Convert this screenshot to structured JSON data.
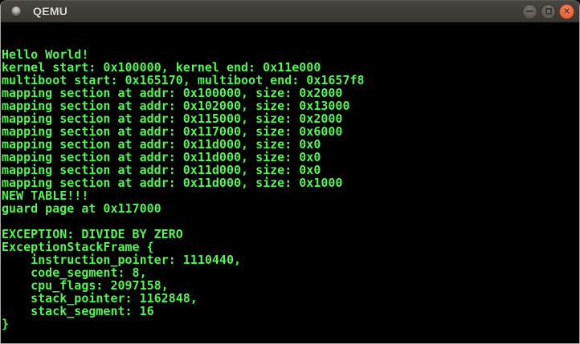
{
  "window": {
    "title": "QEMU",
    "icons": {
      "window_icon": "qemu-circle",
      "minimize": "minus",
      "maximize": "square-outline",
      "close_glyph": "✕"
    },
    "colors": {
      "titlebar": "#403e39",
      "titlebar_text": "#dfdbd2",
      "close_button": "#ea6a41",
      "border": "#a8a6a2"
    }
  },
  "terminal": {
    "colors": {
      "background": "#000000",
      "foreground": "#55f455"
    },
    "lines": [
      "",
      "",
      "Hello World!",
      "kernel start: 0x100000, kernel end: 0x11e000",
      "multiboot start: 0x165170, multiboot end: 0x1657f8",
      "mapping section at addr: 0x100000, size: 0x2000",
      "mapping section at addr: 0x102000, size: 0x13000",
      "mapping section at addr: 0x115000, size: 0x2000",
      "mapping section at addr: 0x117000, size: 0x6000",
      "mapping section at addr: 0x11d000, size: 0x0",
      "mapping section at addr: 0x11d000, size: 0x0",
      "mapping section at addr: 0x11d000, size: 0x0",
      "mapping section at addr: 0x11d000, size: 0x1000",
      "NEW TABLE!!!",
      "guard page at 0x117000",
      "",
      "EXCEPTION: DIVIDE BY ZERO",
      "ExceptionStackFrame {",
      "    instruction_pointer: 1110440,",
      "    code_segment: 8,",
      "    cpu_flags: 2097158,",
      "    stack_pointer: 1162848,",
      "    stack_segment: 16",
      "}",
      ""
    ]
  }
}
